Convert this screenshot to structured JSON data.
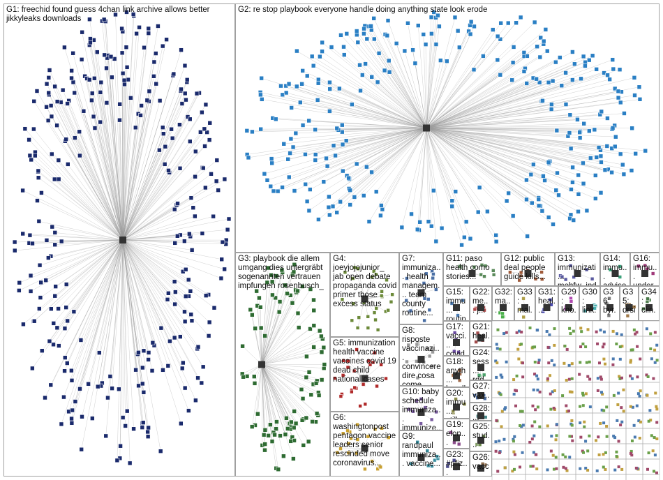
{
  "groups": [
    {
      "label": "G1: freechid found guess 4chan link archive allows better jikkyleaks downloads"
    },
    {
      "label": "G2: re stop playbook everyone handle doing anything state look erode"
    },
    {
      "label": "G3: playbook die allem umgang dies untergräbt sogenannten vertrauen impfungen rosenbusch_"
    },
    {
      "label": "G4: joeyjojojunior_ jab open debate propaganda covid primer those excess status"
    },
    {
      "label": "G5: immunization health vaccine vaccines covid 19 dead child national cases"
    },
    {
      "label": "G6: washingtonpost pentagon vaccine leaders senior rescinded move coronavirus..."
    },
    {
      "label": "G7: immuniza... health managem... team county routine..."
    },
    {
      "label": "G8: risposte vaccinazi... convincere dire cosa come..."
    },
    {
      "label": "G10: baby schedule immuniza... immunize..."
    },
    {
      "label": "G9: randpaul immuniza... vaccine..."
    },
    {
      "label": "G11: paso health como stories..."
    },
    {
      "label": "G12: public deal people guide kills..."
    },
    {
      "label": "G13: immunizati... mohfw_ind..."
    },
    {
      "label": "G14: immu... adviso..."
    },
    {
      "label": "G16: immu... under..."
    },
    {
      "label": "G15: immu... routin..."
    },
    {
      "label": "G22: me... j..."
    },
    {
      "label": "G32: ma..."
    },
    {
      "label": "G33: mal..."
    },
    {
      "label": "G31: heal..."
    },
    {
      "label": "G29: kno..."
    },
    {
      "label": "G30: link..."
    },
    {
      "label": "G36: byr..."
    },
    {
      "label": "G35: drsi..."
    },
    {
      "label": "G34: clin..."
    },
    {
      "label": "G17: vacci... covid..."
    },
    {
      "label": "G21: heal... deat..."
    },
    {
      "label": "G24: sess... rdd..."
    },
    {
      "label": "G18: anyth... handl..."
    },
    {
      "label": "G27: vax..."
    },
    {
      "label": "G20: immu... still..."
    },
    {
      "label": "G28: ..."
    },
    {
      "label": "G19: elon... immu..."
    },
    {
      "label": "G25: stud..."
    },
    {
      "label": "G23: #pfiz..."
    },
    {
      "label": "G26: vacc..."
    }
  ]
}
